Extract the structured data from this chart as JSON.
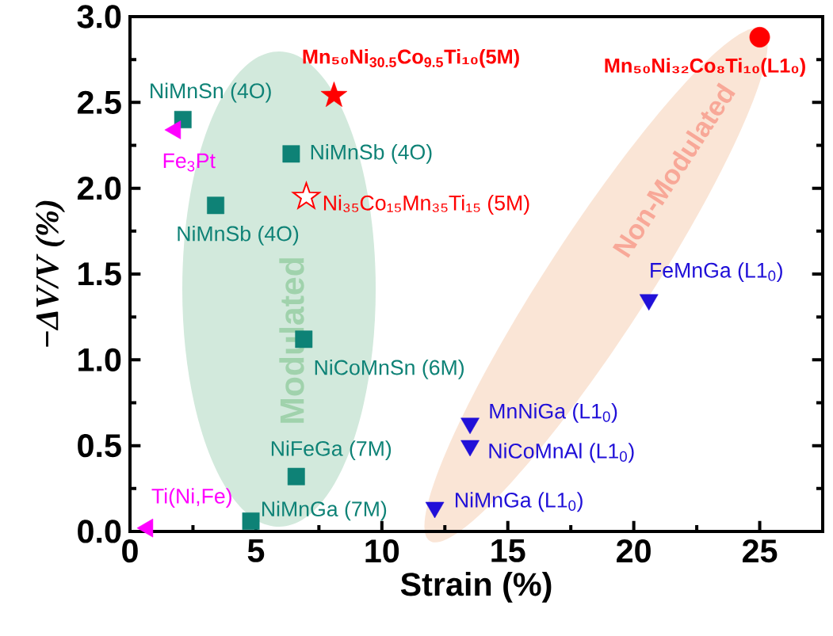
{
  "chart_data": {
    "type": "scatter",
    "xlabel": "Strain (%)",
    "ylabel": "−ΔV/V (%)",
    "xlim": [
      0,
      27.5
    ],
    "ylim": [
      0,
      3.0
    ],
    "xticks": [
      0,
      {
        "value": 2.5,
        "label": null
      },
      5,
      {
        "value": 7.5,
        "label": null
      },
      10,
      {
        "value": 12.5,
        "label": null
      },
      15,
      {
        "value": 17.5,
        "label": null
      },
      20,
      {
        "value": 22.5,
        "label": null
      },
      25
    ],
    "yticks": [
      {
        "value": 0,
        "label": "0.0"
      },
      {
        "value": 0.25,
        "label": null
      },
      {
        "value": 0.5,
        "label": "0.5"
      },
      {
        "value": 0.75,
        "label": null
      },
      {
        "value": 1.0,
        "label": "1.0"
      },
      {
        "value": 1.25,
        "label": null
      },
      {
        "value": 1.5,
        "label": "1.5"
      },
      {
        "value": 1.75,
        "label": null
      },
      {
        "value": 2.0,
        "label": "2.0"
      },
      {
        "value": 2.25,
        "label": null
      },
      {
        "value": 2.5,
        "label": "2.5"
      },
      {
        "value": 2.75,
        "label": null
      },
      {
        "value": 3.0,
        "label": "3.0"
      }
    ],
    "series": [
      {
        "color": "#0e8276",
        "marker": "square",
        "x": [
          2.1,
          6.4,
          3.4,
          6.9,
          6.6,
          4.8
        ],
        "values": [
          2.4,
          2.2,
          1.9,
          1.12,
          0.32,
          0.06
        ]
      },
      {
        "color": "#ff00ff",
        "marker": "triangle",
        "x": [
          1.8,
          0.7
        ],
        "values": [
          2.34,
          0.02
        ]
      },
      {
        "color": "#2010d8",
        "marker": "triangle",
        "x": [
          12.1,
          13.5,
          13.5,
          20.6
        ],
        "values": [
          0.14,
          0.63,
          0.5,
          1.35
        ]
      },
      {
        "color": "#ff0000",
        "marker": "star",
        "x": [
          8.1
        ],
        "values": [
          2.54
        ]
      },
      {
        "color": "#ff0000",
        "marker": "star",
        "x": [
          7.0
        ],
        "values": [
          1.95
        ]
      },
      {
        "color": "#ff0000",
        "marker": "circle",
        "x": [
          25.0
        ],
        "values": [
          2.88
        ]
      }
    ],
    "annotations": [
      {
        "text": "NiMnSn (4O)",
        "x": 2.1,
        "y": 2.4
      },
      {
        "text": "Fe$_{3}$Pt",
        "x": 1.8,
        "y": 2.34
      },
      {
        "text": "NiMnSb (4O)",
        "x": 6.4,
        "y": 2.2
      },
      {
        "text": "NiMnSb (4O)",
        "x": 3.4,
        "y": 1.9
      },
      {
        "text": "Ni₃₅Co₁₅Mn₃₅Ti₁₅ (5M)",
        "x": 7.0,
        "y": 1.95
      },
      {
        "text": "Mn₅₀Ni$_{30.5}$Co$_{9.5}$Ti₁₀(5M)",
        "x": 8.1,
        "y": 2.54
      },
      {
        "text": "Mn₅₀Ni₃₂Co₈Ti₁₀(L1₀)",
        "x": 25.0,
        "y": 2.88
      },
      {
        "text": "NiCoMnSn (6M)",
        "x": 6.9,
        "y": 1.12
      },
      {
        "text": "NiFeGa (7M)",
        "x": 6.6,
        "y": 0.32
      },
      {
        "text": "NiMnGa (7M)",
        "x": 4.8,
        "y": 0.06
      },
      {
        "text": "Ti(Ni,Fe)",
        "x": 0.7,
        "y": 0.02
      },
      {
        "text": "NiMnGa (L1$_{0}$)",
        "x": 12.1,
        "y": 0.14
      },
      {
        "text": "MnNiGa (L1$_{0}$)",
        "x": 13.5,
        "y": 0.63
      },
      {
        "text": "NiCoMnAl (L1$_{0}$)",
        "x": 13.5,
        "y": 0.5
      },
      {
        "text": "FeMnGa (L1$_{0}$)",
        "x": 20.6,
        "y": 1.35
      },
      "Modulated",
      "Non-Modulated"
    ]
  }
}
